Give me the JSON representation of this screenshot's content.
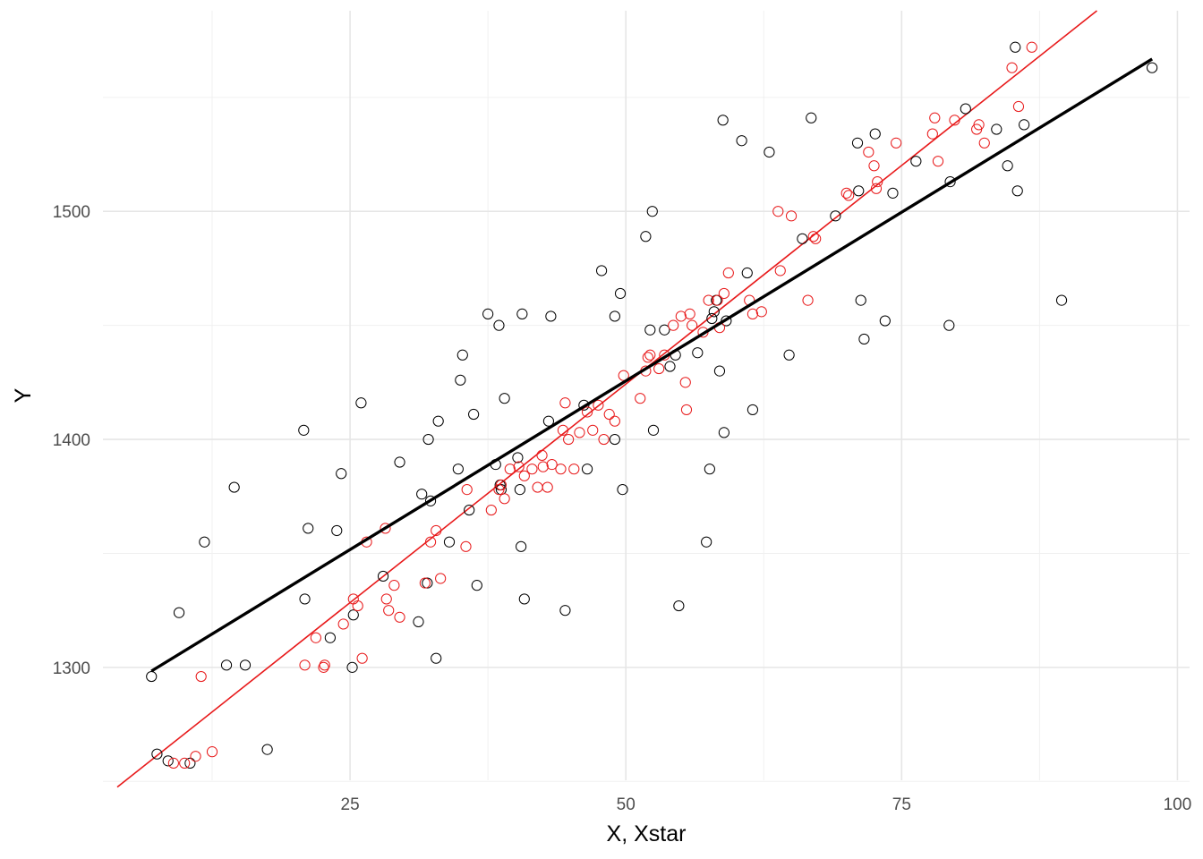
{
  "chart_data": {
    "type": "scatter",
    "title": "",
    "xlabel": "X, Xstar",
    "ylabel": "Y",
    "xlim": [
      2.6,
      101.1
    ],
    "ylim": [
      1250.5,
      1588
    ],
    "x_ticks": [
      25,
      50,
      75,
      100
    ],
    "y_ticks": [
      1300,
      1400,
      1500
    ],
    "grid": true,
    "legend": "none",
    "series": [
      {
        "color": "#000000",
        "marker": "open-circle",
        "points": [
          [
            7.0,
            1296
          ],
          [
            7.5,
            1262
          ],
          [
            8.5,
            1259
          ],
          [
            9.5,
            1324
          ],
          [
            10.5,
            1258
          ],
          [
            11.8,
            1355
          ],
          [
            13.8,
            1301
          ],
          [
            14.5,
            1379
          ],
          [
            15.5,
            1301
          ],
          [
            17.5,
            1264
          ],
          [
            20.8,
            1404
          ],
          [
            20.9,
            1330
          ],
          [
            21.2,
            1361
          ],
          [
            23.2,
            1313
          ],
          [
            23.8,
            1360
          ],
          [
            24.2,
            1385
          ],
          [
            25.2,
            1300
          ],
          [
            25.3,
            1323
          ],
          [
            26.0,
            1416
          ],
          [
            28.0,
            1340
          ],
          [
            29.5,
            1390
          ],
          [
            31.2,
            1320
          ],
          [
            31.5,
            1376
          ],
          [
            32.0,
            1337
          ],
          [
            32.1,
            1400
          ],
          [
            32.3,
            1373
          ],
          [
            32.8,
            1304
          ],
          [
            33.0,
            1408
          ],
          [
            34.0,
            1355
          ],
          [
            34.8,
            1387
          ],
          [
            35.0,
            1426
          ],
          [
            35.2,
            1437
          ],
          [
            35.8,
            1369
          ],
          [
            36.2,
            1411
          ],
          [
            36.5,
            1336
          ],
          [
            37.5,
            1455
          ],
          [
            38.2,
            1389
          ],
          [
            38.5,
            1450
          ],
          [
            38.6,
            1380
          ],
          [
            38.7,
            1378
          ],
          [
            39.0,
            1418
          ],
          [
            40.2,
            1392
          ],
          [
            40.4,
            1378
          ],
          [
            40.5,
            1353
          ],
          [
            40.6,
            1455
          ],
          [
            40.8,
            1330
          ],
          [
            43.0,
            1408
          ],
          [
            43.2,
            1454
          ],
          [
            44.5,
            1325
          ],
          [
            46.2,
            1415
          ],
          [
            46.5,
            1387
          ],
          [
            47.8,
            1474
          ],
          [
            49.0,
            1400
          ],
          [
            49.0,
            1454
          ],
          [
            49.5,
            1464
          ],
          [
            49.7,
            1378
          ],
          [
            51.8,
            1489
          ],
          [
            52.2,
            1448
          ],
          [
            52.4,
            1500
          ],
          [
            52.5,
            1404
          ],
          [
            53.5,
            1448
          ],
          [
            54.0,
            1432
          ],
          [
            54.5,
            1437
          ],
          [
            54.8,
            1327
          ],
          [
            56.5,
            1438
          ],
          [
            57.3,
            1355
          ],
          [
            57.6,
            1387
          ],
          [
            57.8,
            1453
          ],
          [
            58.0,
            1456
          ],
          [
            58.2,
            1461
          ],
          [
            58.5,
            1430
          ],
          [
            58.8,
            1540
          ],
          [
            58.9,
            1403
          ],
          [
            59.1,
            1452
          ],
          [
            60.5,
            1531
          ],
          [
            61.0,
            1473
          ],
          [
            61.5,
            1413
          ],
          [
            63.0,
            1526
          ],
          [
            64.8,
            1437
          ],
          [
            66.0,
            1488
          ],
          [
            66.8,
            1541
          ],
          [
            69.0,
            1498
          ],
          [
            71.0,
            1530
          ],
          [
            71.1,
            1509
          ],
          [
            71.3,
            1461
          ],
          [
            71.6,
            1444
          ],
          [
            72.6,
            1534
          ],
          [
            73.5,
            1452
          ],
          [
            74.2,
            1508
          ],
          [
            76.3,
            1522
          ],
          [
            79.3,
            1450
          ],
          [
            79.4,
            1513
          ],
          [
            80.8,
            1545
          ],
          [
            83.6,
            1536
          ],
          [
            84.6,
            1520
          ],
          [
            85.3,
            1572
          ],
          [
            85.5,
            1509
          ],
          [
            86.1,
            1538
          ],
          [
            89.5,
            1461
          ],
          [
            97.7,
            1563
          ]
        ]
      },
      {
        "color": "#e8191a",
        "marker": "open-circle",
        "points": [
          [
            9.0,
            1258
          ],
          [
            10.0,
            1258
          ],
          [
            11.0,
            1261
          ],
          [
            11.5,
            1296
          ],
          [
            12.5,
            1263
          ],
          [
            20.9,
            1301
          ],
          [
            21.9,
            1313
          ],
          [
            22.6,
            1300
          ],
          [
            22.7,
            1301
          ],
          [
            24.4,
            1319
          ],
          [
            25.3,
            1330
          ],
          [
            25.7,
            1327
          ],
          [
            26.1,
            1304
          ],
          [
            26.5,
            1355
          ],
          [
            28.2,
            1361
          ],
          [
            28.3,
            1330
          ],
          [
            28.5,
            1325
          ],
          [
            29.0,
            1336
          ],
          [
            29.5,
            1322
          ],
          [
            31.8,
            1337
          ],
          [
            32.3,
            1355
          ],
          [
            32.8,
            1360
          ],
          [
            33.2,
            1339
          ],
          [
            35.5,
            1353
          ],
          [
            35.6,
            1378
          ],
          [
            37.8,
            1369
          ],
          [
            38.5,
            1378
          ],
          [
            38.7,
            1380
          ],
          [
            39.0,
            1374
          ],
          [
            39.5,
            1387
          ],
          [
            40.3,
            1388
          ],
          [
            40.8,
            1384
          ],
          [
            41.5,
            1387
          ],
          [
            42.0,
            1379
          ],
          [
            42.4,
            1393
          ],
          [
            42.5,
            1388
          ],
          [
            42.9,
            1379
          ],
          [
            43.3,
            1389
          ],
          [
            44.1,
            1387
          ],
          [
            44.3,
            1404
          ],
          [
            44.5,
            1416
          ],
          [
            44.8,
            1400
          ],
          [
            45.3,
            1387
          ],
          [
            45.8,
            1403
          ],
          [
            46.5,
            1412
          ],
          [
            47.0,
            1404
          ],
          [
            47.5,
            1415
          ],
          [
            48.0,
            1400
          ],
          [
            48.5,
            1411
          ],
          [
            49.0,
            1408
          ],
          [
            49.8,
            1428
          ],
          [
            51.3,
            1418
          ],
          [
            51.8,
            1430
          ],
          [
            52.0,
            1436
          ],
          [
            52.2,
            1437
          ],
          [
            53.0,
            1431
          ],
          [
            53.5,
            1437
          ],
          [
            54.3,
            1450
          ],
          [
            55.0,
            1454
          ],
          [
            55.4,
            1425
          ],
          [
            55.5,
            1413
          ],
          [
            55.8,
            1455
          ],
          [
            56.0,
            1450
          ],
          [
            57.0,
            1447
          ],
          [
            57.5,
            1461
          ],
          [
            58.3,
            1461
          ],
          [
            58.5,
            1449
          ],
          [
            58.9,
            1464
          ],
          [
            59.3,
            1473
          ],
          [
            61.2,
            1461
          ],
          [
            61.5,
            1455
          ],
          [
            62.3,
            1456
          ],
          [
            63.8,
            1500
          ],
          [
            64.0,
            1474
          ],
          [
            65.0,
            1498
          ],
          [
            66.5,
            1461
          ],
          [
            67.0,
            1489
          ],
          [
            67.2,
            1488
          ],
          [
            70.0,
            1508
          ],
          [
            70.2,
            1507
          ],
          [
            72.0,
            1526
          ],
          [
            72.5,
            1520
          ],
          [
            72.7,
            1510
          ],
          [
            72.8,
            1513
          ],
          [
            74.5,
            1530
          ],
          [
            77.8,
            1534
          ],
          [
            78.0,
            1541
          ],
          [
            78.3,
            1522
          ],
          [
            79.8,
            1540
          ],
          [
            81.8,
            1536
          ],
          [
            82.0,
            1538
          ],
          [
            82.5,
            1530
          ],
          [
            85.0,
            1563
          ],
          [
            85.6,
            1546
          ],
          [
            86.8,
            1572
          ]
        ]
      }
    ],
    "fit_lines": [
      {
        "color": "#000000",
        "x": [
          7.0,
          97.7
        ],
        "y": [
          1298.4,
          1566.8
        ]
      },
      {
        "color": "#e8191a",
        "x": [
          3.9,
          92.7
        ],
        "y": [
          1247.5,
          1588.0
        ]
      }
    ]
  }
}
